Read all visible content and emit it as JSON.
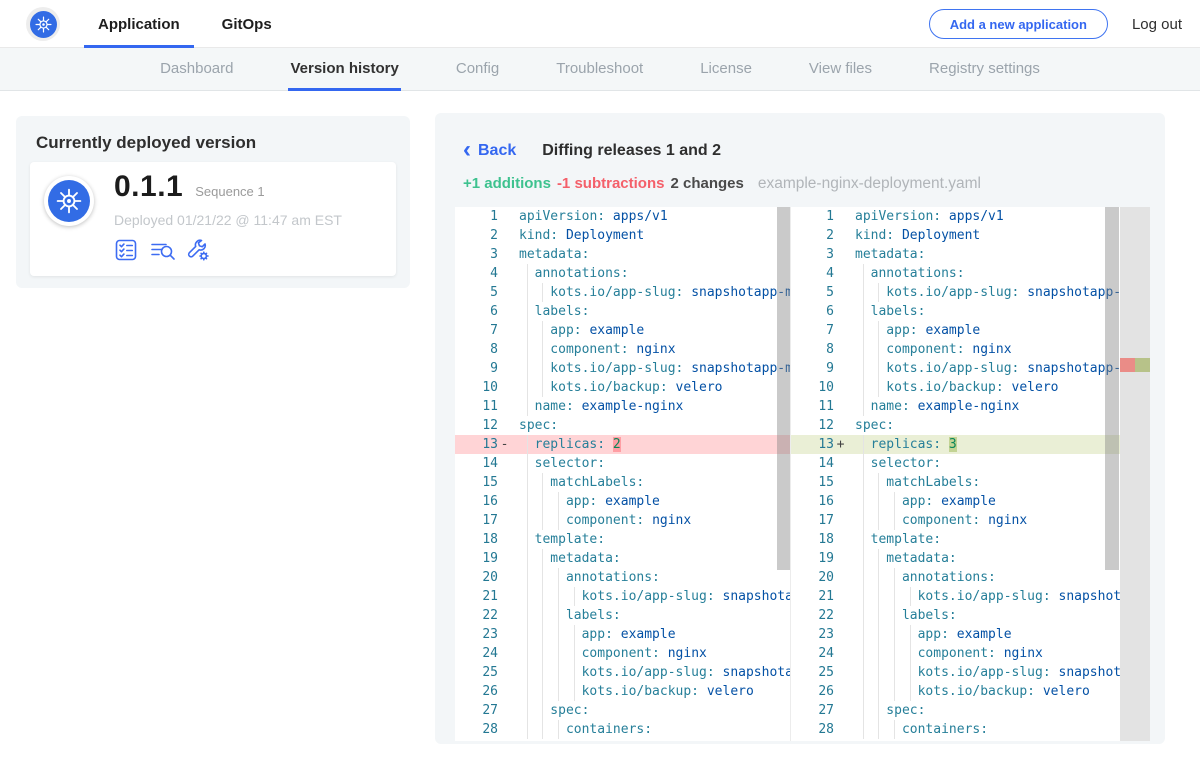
{
  "accent_color": "#3467f0",
  "kubernetes_blue": "#326ce5",
  "topbar": {
    "logo_icon": "kubernetes-wheel-icon",
    "tabs": [
      {
        "label": "Application"
      },
      {
        "label": "GitOps"
      }
    ],
    "active_tab": 0,
    "add_button": "Add a new application",
    "logout": "Log out"
  },
  "subnav": {
    "items": [
      "Dashboard",
      "Version history",
      "Config",
      "Troubleshoot",
      "License",
      "View files",
      "Registry settings"
    ],
    "active": 1
  },
  "deployed_card": {
    "title": "Currently deployed version",
    "version": "0.1.1",
    "sequence": "Sequence 1",
    "deployed": "Deployed 01/21/22 @ 11:47 am EST",
    "icons": [
      "preflight-checklist-icon",
      "deploy-logs-icon",
      "config-wrench-icon"
    ]
  },
  "diff": {
    "back": "Back",
    "title": "Diffing releases 1 and 2",
    "stats": {
      "additions": "+1 additions",
      "subtractions": "-1 subtractions",
      "changes": "2 changes",
      "filename": "example-nginx-deployment.yaml"
    },
    "colors": {
      "additions": "#3ec28f",
      "subtractions": "#f4606a",
      "deleted_line_bg": "#ffd4d6",
      "added_line_bg": "#eaefd6"
    },
    "left_lines": [
      [
        1,
        0,
        "apiVersion",
        "apps/v1",
        "str",
        ""
      ],
      [
        2,
        0,
        "kind",
        "Deployment",
        "str",
        ""
      ],
      [
        3,
        0,
        "metadata",
        "",
        "",
        ""
      ],
      [
        4,
        2,
        "annotations",
        "",
        "",
        ""
      ],
      [
        5,
        4,
        "kots.io/app-slug",
        "snapshotapp-mu",
        "str",
        ""
      ],
      [
        6,
        2,
        "labels",
        "",
        "",
        ""
      ],
      [
        7,
        4,
        "app",
        "example",
        "str",
        ""
      ],
      [
        8,
        4,
        "component",
        "nginx",
        "str",
        ""
      ],
      [
        9,
        4,
        "kots.io/app-slug",
        "snapshotapp-mu",
        "str",
        ""
      ],
      [
        10,
        4,
        "kots.io/backup",
        "velero",
        "str",
        ""
      ],
      [
        11,
        2,
        "name",
        "example-nginx",
        "str",
        ""
      ],
      [
        12,
        0,
        "spec",
        "",
        "",
        ""
      ],
      [
        13,
        2,
        "replicas",
        "2",
        "num",
        "del"
      ],
      [
        14,
        2,
        "selector",
        "",
        "",
        ""
      ],
      [
        15,
        4,
        "matchLabels",
        "",
        "",
        ""
      ],
      [
        16,
        6,
        "app",
        "example",
        "str",
        ""
      ],
      [
        17,
        6,
        "component",
        "nginx",
        "str",
        ""
      ],
      [
        18,
        2,
        "template",
        "",
        "",
        ""
      ],
      [
        19,
        4,
        "metadata",
        "",
        "",
        ""
      ],
      [
        20,
        6,
        "annotations",
        "",
        "",
        ""
      ],
      [
        21,
        8,
        "kots.io/app-slug",
        "snapshotap",
        "str",
        ""
      ],
      [
        22,
        6,
        "labels",
        "",
        "",
        ""
      ],
      [
        23,
        8,
        "app",
        "example",
        "str",
        ""
      ],
      [
        24,
        8,
        "component",
        "nginx",
        "str",
        ""
      ],
      [
        25,
        8,
        "kots.io/app-slug",
        "snapshotap",
        "str",
        ""
      ],
      [
        26,
        8,
        "kots.io/backup",
        "velero",
        "str",
        ""
      ],
      [
        27,
        4,
        "spec",
        "",
        "",
        ""
      ],
      [
        28,
        6,
        "containers",
        "",
        "",
        ""
      ]
    ],
    "right_lines": [
      [
        1,
        0,
        "apiVersion",
        "apps/v1",
        "str",
        ""
      ],
      [
        2,
        0,
        "kind",
        "Deployment",
        "str",
        ""
      ],
      [
        3,
        0,
        "metadata",
        "",
        "",
        ""
      ],
      [
        4,
        2,
        "annotations",
        "",
        "",
        ""
      ],
      [
        5,
        4,
        "kots.io/app-slug",
        "snapshotapp-mu",
        "str",
        ""
      ],
      [
        6,
        2,
        "labels",
        "",
        "",
        ""
      ],
      [
        7,
        4,
        "app",
        "example",
        "str",
        ""
      ],
      [
        8,
        4,
        "component",
        "nginx",
        "str",
        ""
      ],
      [
        9,
        4,
        "kots.io/app-slug",
        "snapshotapp-mu",
        "str",
        ""
      ],
      [
        10,
        4,
        "kots.io/backup",
        "velero",
        "str",
        ""
      ],
      [
        11,
        2,
        "name",
        "example-nginx",
        "str",
        ""
      ],
      [
        12,
        0,
        "spec",
        "",
        "",
        ""
      ],
      [
        13,
        2,
        "replicas",
        "3",
        "num",
        "add"
      ],
      [
        14,
        2,
        "selector",
        "",
        "",
        ""
      ],
      [
        15,
        4,
        "matchLabels",
        "",
        "",
        ""
      ],
      [
        16,
        6,
        "app",
        "example",
        "str",
        ""
      ],
      [
        17,
        6,
        "component",
        "nginx",
        "str",
        ""
      ],
      [
        18,
        2,
        "template",
        "",
        "",
        ""
      ],
      [
        19,
        4,
        "metadata",
        "",
        "",
        ""
      ],
      [
        20,
        6,
        "annotations",
        "",
        "",
        ""
      ],
      [
        21,
        8,
        "kots.io/app-slug",
        "snapshotap",
        "str",
        ""
      ],
      [
        22,
        6,
        "labels",
        "",
        "",
        ""
      ],
      [
        23,
        8,
        "app",
        "example",
        "str",
        ""
      ],
      [
        24,
        8,
        "component",
        "nginx",
        "str",
        ""
      ],
      [
        25,
        8,
        "kots.io/app-slug",
        "snapshotap",
        "str",
        ""
      ],
      [
        26,
        8,
        "kots.io/backup",
        "velero",
        "str",
        ""
      ],
      [
        27,
        4,
        "spec",
        "",
        "",
        ""
      ],
      [
        28,
        6,
        "containers",
        "",
        "",
        ""
      ]
    ]
  }
}
